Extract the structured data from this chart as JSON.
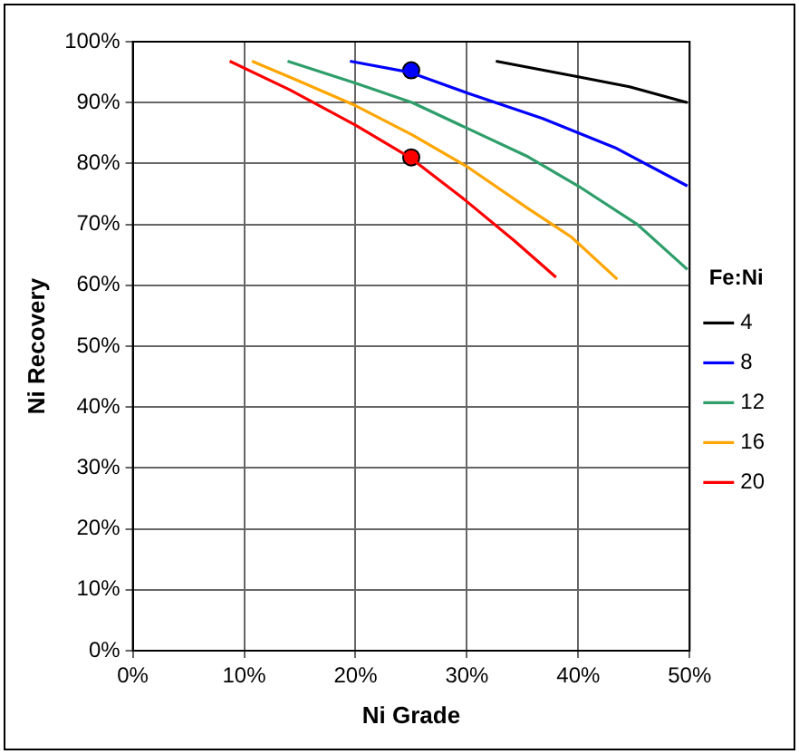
{
  "chart_data": {
    "type": "line",
    "xlabel": "Ni Grade",
    "ylabel": "Ni Recovery",
    "legend_title": "Fe:Ni",
    "legend": "right",
    "grid": true,
    "marker": "none",
    "line_style": "solid",
    "xlim": [
      0,
      50
    ],
    "xticks": [
      {
        "value": 0,
        "label": "0%"
      },
      {
        "value": 10,
        "label": "10%"
      },
      {
        "value": 20,
        "label": "20%"
      },
      {
        "value": 30,
        "label": "30%"
      },
      {
        "value": 40,
        "label": "40%"
      },
      {
        "value": 50,
        "label": "50%"
      }
    ],
    "ylim": [
      0,
      100
    ],
    "yticks": [
      {
        "value": 0,
        "label": "0%"
      },
      {
        "value": 10,
        "label": "10%"
      },
      {
        "value": 20,
        "label": "20%"
      },
      {
        "value": 30,
        "label": "30%"
      },
      {
        "value": 40,
        "label": "40%"
      },
      {
        "value": 50,
        "label": "50%"
      },
      {
        "value": 60,
        "label": "60%"
      },
      {
        "value": 70,
        "label": "70%"
      },
      {
        "value": 80,
        "label": "80%"
      },
      {
        "value": 90,
        "label": "90%"
      },
      {
        "value": 100,
        "label": "100%"
      }
    ],
    "series": [
      {
        "name": "4",
        "color": "#000000",
        "x": [
          32.6,
          40.1,
          44.6,
          49.8
        ],
        "values": [
          96.8,
          94.2,
          92.6,
          90.0
        ]
      },
      {
        "name": "8",
        "color": "#0000ff",
        "x": [
          19.5,
          24.8,
          30,
          36.8,
          43.3,
          49.8
        ],
        "values": [
          96.8,
          95.0,
          91.6,
          87.4,
          82.6,
          76.3
        ]
      },
      {
        "name": "12",
        "color": "#2e9e6a",
        "x": [
          13.9,
          20,
          25.1,
          30,
          35.5,
          40,
          45.3,
          49.8
        ],
        "values": [
          96.8,
          93.2,
          90,
          85.8,
          81.1,
          76.3,
          70,
          62.6
        ]
      },
      {
        "name": "16",
        "color": "#ffa500",
        "x": [
          10.7,
          14.7,
          20,
          25.1,
          30,
          35.5,
          39.4,
          43.5
        ],
        "values": [
          96.8,
          93.7,
          89.5,
          84.7,
          79.5,
          72.6,
          67.9,
          61
        ]
      },
      {
        "name": "20",
        "color": "#ff0000",
        "x": [
          8.7,
          14.1,
          20,
          24.8,
          29.7,
          34.2,
          38
        ],
        "values": [
          96.8,
          92.1,
          86.3,
          81.1,
          74.2,
          67.4,
          61.3
        ]
      },
      {
        "type": "scatter",
        "marker": "circle",
        "x": [
          25,
          25
        ],
        "values": [
          95.3,
          81
        ],
        "colors": [
          "#0000ff",
          "#ff0000"
        ]
      }
    ]
  }
}
